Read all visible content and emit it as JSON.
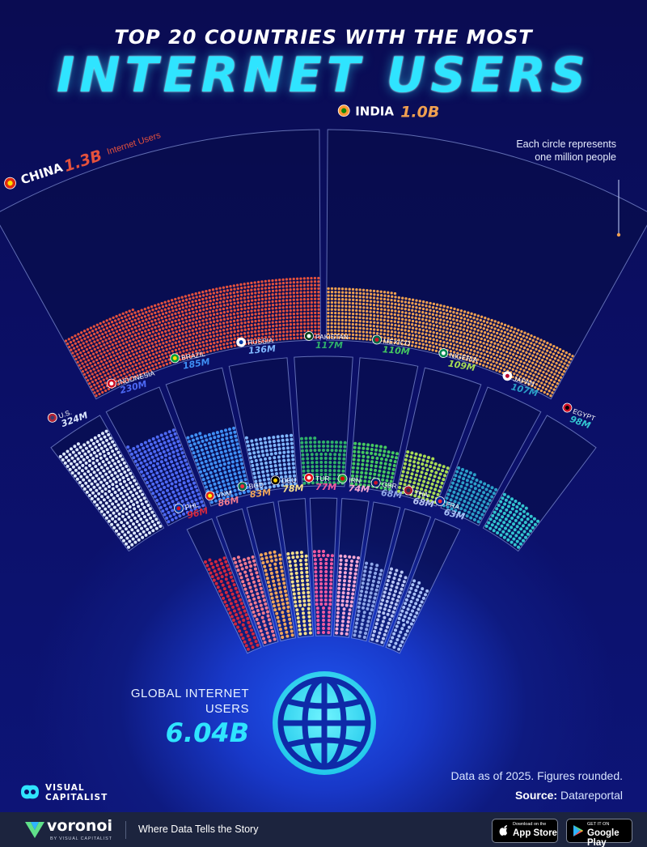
{
  "header": {
    "supertitle": "TOP 20 COUNTRIES WITH THE MOST",
    "title": "INTERNET USERS"
  },
  "note": "Each circle represents one million people",
  "chart_data": {
    "type": "pictograph",
    "unit_note": "Each circle represents one million people",
    "series": [
      {
        "country": "CHINA",
        "label": "1.3B",
        "suffix": "Internet Users",
        "value_millions": 1300,
        "color": "#e4513d",
        "flag": "china-flag-icon"
      },
      {
        "country": "INDIA",
        "label": "1.0B",
        "value_millions": 1000,
        "color": "#f0a050",
        "flag": "india-flag-icon"
      },
      {
        "country": "U.S.",
        "label": "324M",
        "value_millions": 324,
        "color": "#dde8ff",
        "flag": "usa-flag-icon"
      },
      {
        "country": "INDONESIA",
        "label": "230M",
        "value_millions": 230,
        "color": "#4d69f5",
        "flag": "indonesia-flag-icon"
      },
      {
        "country": "BRAZIL",
        "label": "185M",
        "value_millions": 185,
        "color": "#3f8ff5",
        "flag": "brazil-flag-icon"
      },
      {
        "country": "RUSSIA",
        "label": "136M",
        "value_millions": 136,
        "color": "#7fb6ff",
        "flag": "russia-flag-icon"
      },
      {
        "country": "PAKISTAN",
        "label": "117M",
        "value_millions": 117,
        "color": "#2fb06a",
        "flag": "pakistan-flag-icon"
      },
      {
        "country": "MEXICO",
        "label": "110M",
        "value_millions": 110,
        "color": "#45c860",
        "flag": "mexico-flag-icon"
      },
      {
        "country": "NIGERIA",
        "label": "109M",
        "value_millions": 109,
        "color": "#a8dc55",
        "flag": "nigeria-flag-icon"
      },
      {
        "country": "JAPAN",
        "label": "107M",
        "value_millions": 107,
        "color": "#2b9fc8",
        "flag": "japan-flag-icon"
      },
      {
        "country": "EGYPT",
        "label": "98M",
        "value_millions": 98,
        "color": "#32c4d0",
        "flag": "egypt-flag-icon"
      },
      {
        "country": "PHL",
        "label": "96M",
        "value_millions": 96,
        "color": "#d2283e",
        "flag": "philippines-flag-icon"
      },
      {
        "country": "VNM",
        "label": "86M",
        "value_millions": 86,
        "color": "#f27b8f",
        "flag": "vietnam-flag-icon"
      },
      {
        "country": "BGD",
        "label": "83M",
        "value_millions": 83,
        "color": "#f0a55a",
        "flag": "bangladesh-flag-icon"
      },
      {
        "country": "DEU",
        "label": "78M",
        "value_millions": 78,
        "color": "#f8e08a",
        "flag": "germany-flag-icon"
      },
      {
        "country": "TUR",
        "label": "77M",
        "value_millions": 77,
        "color": "#f05aa0",
        "flag": "turkey-flag-icon"
      },
      {
        "country": "IRN",
        "label": "74M",
        "value_millions": 74,
        "color": "#f7a8d4",
        "flag": "iran-flag-icon"
      },
      {
        "country": "GBR",
        "label": "68M",
        "value_millions": 68,
        "color": "#8fa6e8",
        "flag": "uk-flag-icon"
      },
      {
        "country": "THA",
        "label": "68M",
        "value_millions": 68,
        "color": "#b9c6f5",
        "flag": "thailand-flag-icon"
      },
      {
        "country": "FRA",
        "label": "63M",
        "value_millions": 63,
        "color": "#a8c0f8",
        "flag": "france-flag-icon"
      }
    ]
  },
  "global": {
    "label": "GLOBAL INTERNET USERS",
    "value": "6.04B",
    "icon": "globe-icon"
  },
  "notes": {
    "data_note": "Data as of 2025. Figures rounded.",
    "source_label": "Source:",
    "source_value": "Datareportal"
  },
  "brand": {
    "vc_line1": "VISUAL",
    "vc_line2": "CAPITALIST"
  },
  "footer": {
    "brand": "voronoi",
    "by": "BY VISUAL CAPITALIST",
    "tagline": "Where Data Tells the Story",
    "app_store_small": "Download on the",
    "app_store_big": "App Store",
    "google_small": "GET IT ON",
    "google_big": "Google Play"
  },
  "colors": {
    "background": "#0b0f66",
    "title_cyan": "#2fe4ff",
    "accent_blue": "#2b6bff"
  }
}
